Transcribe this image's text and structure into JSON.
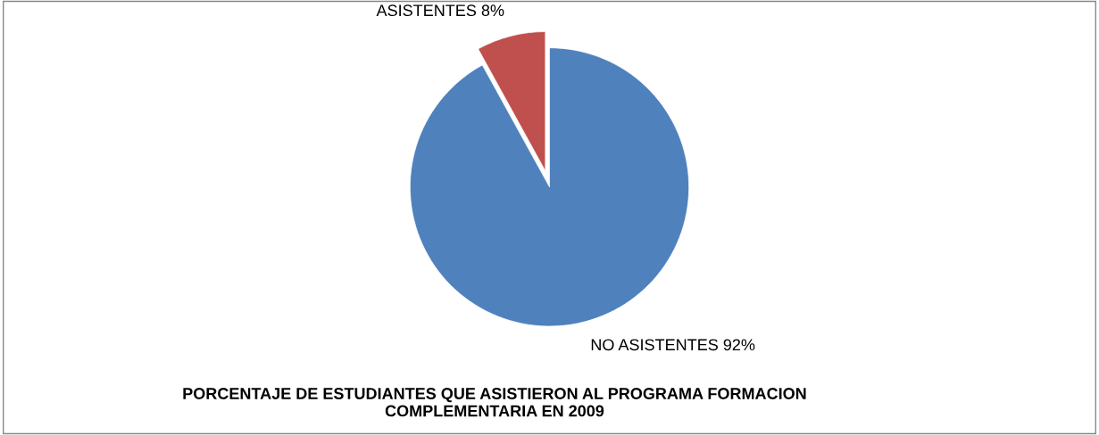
{
  "chart_data": {
    "type": "pie",
    "title": "PORCENTAJE DE ESTUDIANTES QUE ASISTIERON AL PROGRAMA FORMACION\nCOMPLEMENTARIA EN 2009",
    "categories": [
      "ASISTENTES",
      "NO ASISTENTES"
    ],
    "values": [
      8,
      92
    ],
    "colors": [
      "#c0504d",
      "#4f81bd"
    ],
    "value_labels": [
      "8%",
      "92%"
    ],
    "legend": false
  }
}
